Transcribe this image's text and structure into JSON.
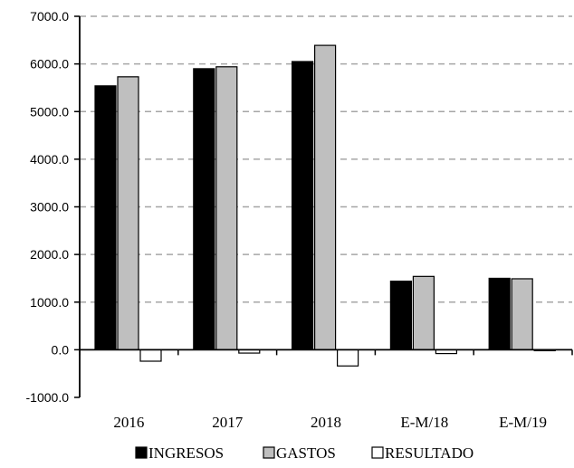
{
  "chart_data": {
    "type": "bar",
    "title": "",
    "xlabel": "",
    "ylabel": "",
    "categories": [
      "2016",
      "2017",
      "2018",
      "E-M/18",
      "E-M/19"
    ],
    "series": [
      {
        "name": "INGRESOS",
        "color": "#000000",
        "values": [
          5540,
          5900,
          6050,
          1440,
          1500
        ]
      },
      {
        "name": "GASTOS",
        "color": "#bfbfbf",
        "values": [
          5730,
          5940,
          6390,
          1540,
          1490
        ]
      },
      {
        "name": "RESULTADO",
        "color": "#ffffff",
        "values": [
          -240,
          -70,
          -340,
          -80,
          -20
        ]
      }
    ],
    "ylim": [
      -1000,
      7000
    ],
    "yticks": [
      "7000.0",
      "6000.0",
      "5000.0",
      "4000.0",
      "3000.0",
      "2000.0",
      "1000.0",
      "0.0",
      "-1000.0"
    ],
    "ytick_values": [
      7000,
      6000,
      5000,
      4000,
      3000,
      2000,
      1000,
      0,
      -1000
    ],
    "grid": true,
    "grid_style": "dashed",
    "legend_position": "bottom"
  }
}
